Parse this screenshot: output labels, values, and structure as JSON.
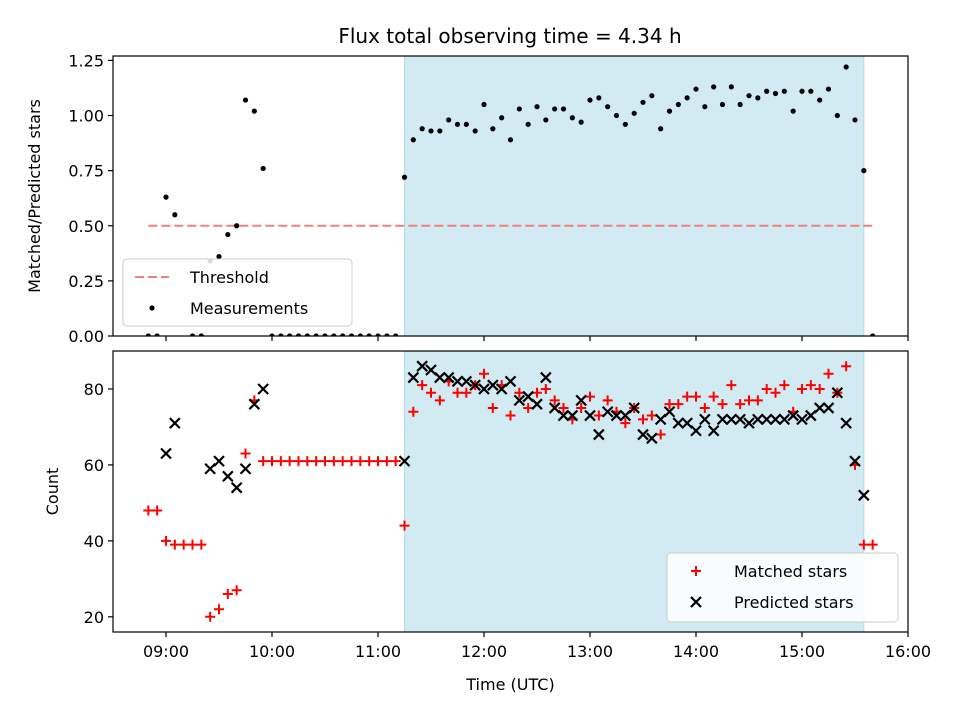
{
  "title": "Flux total observing time = 4.34 h",
  "chart_data": [
    {
      "type": "scatter",
      "ylabel": "Matched/Predicted stars",
      "xlabel": "",
      "xlim": [
        "08:30",
        "16:00"
      ],
      "ylim": [
        0,
        1.27
      ],
      "yticks": [
        "0.00",
        "0.25",
        "0.50",
        "0.75",
        "1.00",
        "1.25"
      ],
      "xticks": [
        "09:00",
        "10:00",
        "11:00",
        "12:00",
        "13:00",
        "14:00",
        "15:00",
        "16:00"
      ],
      "shaded_span": [
        "11:15",
        "15:35"
      ],
      "shade_color": "#add8e6",
      "legend": {
        "position": "lower-left",
        "entries": [
          {
            "label": "Threshold",
            "color": "#f08080",
            "marker": "dashed-line"
          },
          {
            "label": "Measurements",
            "color": "#000000",
            "marker": "dot"
          }
        ]
      },
      "threshold": {
        "value": 0.5,
        "x": [
          "08:50",
          "15:40"
        ],
        "color": "#f08080"
      },
      "series": [
        {
          "name": "Measurements",
          "color": "#000000",
          "marker": "dot",
          "points": [
            [
              "08:50",
              0.0
            ],
            [
              "08:55",
              0.0
            ],
            [
              "09:00",
              0.63
            ],
            [
              "09:05",
              0.55
            ],
            [
              "09:15",
              0.0
            ],
            [
              "09:20",
              0.0
            ],
            [
              "09:25",
              0.34
            ],
            [
              "09:30",
              0.36
            ],
            [
              "09:35",
              0.46
            ],
            [
              "09:40",
              0.5
            ],
            [
              "09:45",
              1.07
            ],
            [
              "09:50",
              1.02
            ],
            [
              "09:55",
              0.76
            ],
            [
              "10:00",
              0.0
            ],
            [
              "10:05",
              0.0
            ],
            [
              "10:10",
              0.0
            ],
            [
              "10:15",
              0.0
            ],
            [
              "10:20",
              0.0
            ],
            [
              "10:25",
              0.0
            ],
            [
              "10:30",
              0.0
            ],
            [
              "10:35",
              0.0
            ],
            [
              "10:40",
              0.0
            ],
            [
              "10:45",
              0.0
            ],
            [
              "10:50",
              0.0
            ],
            [
              "10:55",
              0.0
            ],
            [
              "11:00",
              0.0
            ],
            [
              "11:05",
              0.0
            ],
            [
              "11:10",
              0.0
            ],
            [
              "11:15",
              0.72
            ],
            [
              "11:20",
              0.89
            ],
            [
              "11:25",
              0.94
            ],
            [
              "11:30",
              0.93
            ],
            [
              "11:35",
              0.93
            ],
            [
              "11:40",
              0.98
            ],
            [
              "11:45",
              0.96
            ],
            [
              "11:50",
              0.96
            ],
            [
              "11:55",
              0.93
            ],
            [
              "12:00",
              1.05
            ],
            [
              "12:05",
              0.94
            ],
            [
              "12:10",
              0.99
            ],
            [
              "12:15",
              0.89
            ],
            [
              "12:20",
              1.03
            ],
            [
              "12:25",
              0.96
            ],
            [
              "12:30",
              1.04
            ],
            [
              "12:35",
              0.98
            ],
            [
              "12:40",
              1.03
            ],
            [
              "12:45",
              1.03
            ],
            [
              "12:50",
              0.99
            ],
            [
              "12:55",
              0.97
            ],
            [
              "13:00",
              1.07
            ],
            [
              "13:05",
              1.08
            ],
            [
              "13:10",
              1.04
            ],
            [
              "13:15",
              1.0
            ],
            [
              "13:20",
              0.96
            ],
            [
              "13:25",
              1.01
            ],
            [
              "13:30",
              1.06
            ],
            [
              "13:35",
              1.09
            ],
            [
              "13:40",
              0.94
            ],
            [
              "13:45",
              1.02
            ],
            [
              "13:50",
              1.05
            ],
            [
              "13:55",
              1.08
            ],
            [
              "14:00",
              1.12
            ],
            [
              "14:05",
              1.04
            ],
            [
              "14:10",
              1.13
            ],
            [
              "14:15",
              1.05
            ],
            [
              "14:20",
              1.13
            ],
            [
              "14:25",
              1.05
            ],
            [
              "14:30",
              1.09
            ],
            [
              "14:35",
              1.08
            ],
            [
              "14:40",
              1.11
            ],
            [
              "14:45",
              1.1
            ],
            [
              "14:50",
              1.11
            ],
            [
              "14:55",
              1.02
            ],
            [
              "15:00",
              1.11
            ],
            [
              "15:05",
              1.11
            ],
            [
              "15:10",
              1.07
            ],
            [
              "15:15",
              1.12
            ],
            [
              "15:20",
              1.0
            ],
            [
              "15:25",
              1.22
            ],
            [
              "15:30",
              0.98
            ],
            [
              "15:35",
              0.75
            ],
            [
              "15:40",
              0.0
            ]
          ]
        }
      ]
    },
    {
      "type": "scatter",
      "ylabel": "Count",
      "xlabel": "Time (UTC)",
      "xlim": [
        "08:30",
        "16:00"
      ],
      "ylim": [
        16,
        90
      ],
      "yticks": [
        "20",
        "40",
        "60",
        "80"
      ],
      "xticks": [
        "09:00",
        "10:00",
        "11:00",
        "12:00",
        "13:00",
        "14:00",
        "15:00",
        "16:00"
      ],
      "shaded_span": [
        "11:15",
        "15:35"
      ],
      "shade_color": "#add8e6",
      "legend": {
        "position": "lower-right",
        "entries": [
          {
            "label": "Matched stars",
            "color": "#ff0000",
            "marker": "plus"
          },
          {
            "label": "Predicted stars",
            "color": "#000000",
            "marker": "x"
          }
        ]
      },
      "series": [
        {
          "name": "Matched stars",
          "color": "#ff0000",
          "marker": "plus",
          "points": [
            [
              "08:50",
              48
            ],
            [
              "08:55",
              48
            ],
            [
              "09:00",
              40
            ],
            [
              "09:05",
              39
            ],
            [
              "09:10",
              39
            ],
            [
              "09:15",
              39
            ],
            [
              "09:20",
              39
            ],
            [
              "09:25",
              20
            ],
            [
              "09:30",
              22
            ],
            [
              "09:35",
              26
            ],
            [
              "09:40",
              27
            ],
            [
              "09:45",
              63
            ],
            [
              "09:50",
              77
            ],
            [
              "09:55",
              61
            ],
            [
              "10:00",
              61
            ],
            [
              "10:05",
              61
            ],
            [
              "10:10",
              61
            ],
            [
              "10:15",
              61
            ],
            [
              "10:20",
              61
            ],
            [
              "10:25",
              61
            ],
            [
              "10:30",
              61
            ],
            [
              "10:35",
              61
            ],
            [
              "10:40",
              61
            ],
            [
              "10:45",
              61
            ],
            [
              "10:50",
              61
            ],
            [
              "10:55",
              61
            ],
            [
              "11:00",
              61
            ],
            [
              "11:05",
              61
            ],
            [
              "11:10",
              61
            ],
            [
              "11:15",
              44
            ],
            [
              "11:20",
              74
            ],
            [
              "11:25",
              81
            ],
            [
              "11:30",
              79
            ],
            [
              "11:35",
              77
            ],
            [
              "11:40",
              82
            ],
            [
              "11:45",
              79
            ],
            [
              "11:50",
              79
            ],
            [
              "11:55",
              81
            ],
            [
              "12:00",
              84
            ],
            [
              "12:05",
              75
            ],
            [
              "12:10",
              81
            ],
            [
              "12:15",
              73
            ],
            [
              "12:20",
              79
            ],
            [
              "12:25",
              75
            ],
            [
              "12:30",
              79
            ],
            [
              "12:35",
              80
            ],
            [
              "12:40",
              77
            ],
            [
              "12:45",
              75
            ],
            [
              "12:50",
              72
            ],
            [
              "12:55",
              75
            ],
            [
              "13:00",
              78
            ],
            [
              "13:05",
              73
            ],
            [
              "13:10",
              77
            ],
            [
              "13:15",
              74
            ],
            [
              "13:20",
              71
            ],
            [
              "13:25",
              75
            ],
            [
              "13:30",
              72
            ],
            [
              "13:35",
              73
            ],
            [
              "13:40",
              68
            ],
            [
              "13:45",
              76
            ],
            [
              "13:50",
              76
            ],
            [
              "13:55",
              78
            ],
            [
              "14:00",
              78
            ],
            [
              "14:05",
              75
            ],
            [
              "14:10",
              78
            ],
            [
              "14:15",
              76
            ],
            [
              "14:20",
              81
            ],
            [
              "14:25",
              76
            ],
            [
              "14:30",
              77
            ],
            [
              "14:35",
              77
            ],
            [
              "14:40",
              80
            ],
            [
              "14:45",
              79
            ],
            [
              "14:50",
              81
            ],
            [
              "14:55",
              74
            ],
            [
              "15:00",
              80
            ],
            [
              "15:05",
              81
            ],
            [
              "15:10",
              80
            ],
            [
              "15:15",
              84
            ],
            [
              "15:20",
              79
            ],
            [
              "15:25",
              86
            ],
            [
              "15:30",
              60
            ],
            [
              "15:35",
              39
            ],
            [
              "15:40",
              39
            ]
          ]
        },
        {
          "name": "Predicted stars",
          "color": "#000000",
          "marker": "x",
          "points": [
            [
              "09:00",
              63
            ],
            [
              "09:05",
              71
            ],
            [
              "09:25",
              59
            ],
            [
              "09:30",
              61
            ],
            [
              "09:35",
              57
            ],
            [
              "09:40",
              54
            ],
            [
              "09:45",
              59
            ],
            [
              "09:50",
              76
            ],
            [
              "09:55",
              80
            ],
            [
              "11:15",
              61
            ],
            [
              "11:20",
              83
            ],
            [
              "11:25",
              86
            ],
            [
              "11:30",
              85
            ],
            [
              "11:35",
              83
            ],
            [
              "11:40",
              83
            ],
            [
              "11:45",
              82
            ],
            [
              "11:50",
              82
            ],
            [
              "11:55",
              81
            ],
            [
              "12:00",
              80
            ],
            [
              "12:05",
              81
            ],
            [
              "12:10",
              80
            ],
            [
              "12:15",
              82
            ],
            [
              "12:20",
              77
            ],
            [
              "12:25",
              78
            ],
            [
              "12:30",
              76
            ],
            [
              "12:35",
              83
            ],
            [
              "12:40",
              75
            ],
            [
              "12:45",
              73
            ],
            [
              "12:50",
              73
            ],
            [
              "12:55",
              77
            ],
            [
              "13:00",
              73
            ],
            [
              "13:05",
              68
            ],
            [
              "13:10",
              74
            ],
            [
              "13:15",
              73
            ],
            [
              "13:20",
              73
            ],
            [
              "13:25",
              75
            ],
            [
              "13:30",
              68
            ],
            [
              "13:35",
              67
            ],
            [
              "13:40",
              72
            ],
            [
              "13:45",
              74
            ],
            [
              "13:50",
              71
            ],
            [
              "13:55",
              71
            ],
            [
              "14:00",
              69
            ],
            [
              "14:05",
              72
            ],
            [
              "14:10",
              69
            ],
            [
              "14:15",
              72
            ],
            [
              "14:20",
              72
            ],
            [
              "14:25",
              72
            ],
            [
              "14:30",
              71
            ],
            [
              "14:35",
              72
            ],
            [
              "14:40",
              72
            ],
            [
              "14:45",
              72
            ],
            [
              "14:50",
              72
            ],
            [
              "14:55",
              73
            ],
            [
              "15:00",
              72
            ],
            [
              "15:05",
              73
            ],
            [
              "15:10",
              75
            ],
            [
              "15:15",
              75
            ],
            [
              "15:20",
              79
            ],
            [
              "15:25",
              71
            ],
            [
              "15:30",
              61
            ],
            [
              "15:35",
              52
            ]
          ]
        }
      ]
    }
  ]
}
